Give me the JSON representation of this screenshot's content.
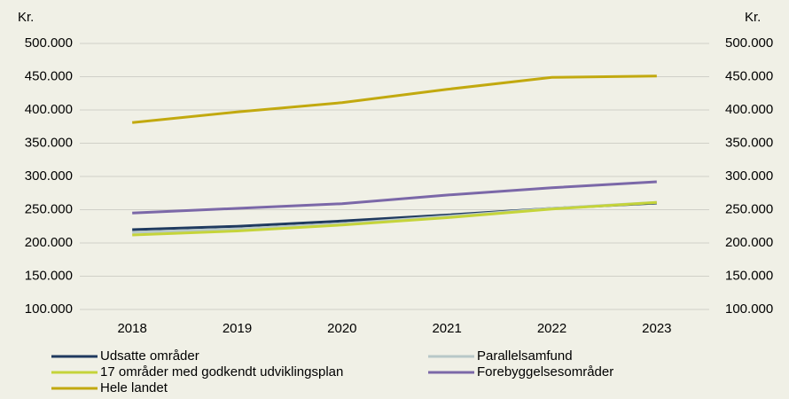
{
  "chart_data": {
    "type": "line",
    "y_label": "Kr.",
    "y2_label": "Kr.",
    "categories": [
      "2018",
      "2019",
      "2020",
      "2021",
      "2022",
      "2023"
    ],
    "series": [
      {
        "name": "Udsatte områder",
        "color": "#1f3a5f",
        "values": [
          220000,
          225000,
          233000,
          242000,
          252000,
          260000
        ]
      },
      {
        "name": "Parallelsamfund",
        "color": "#b8c8c8",
        "values": [
          216000,
          221000,
          229000,
          240000,
          252000,
          261000
        ]
      },
      {
        "name": "17 områder med godkendt udviklingsplan",
        "color": "#c5d43a",
        "values": [
          212000,
          218000,
          227000,
          238000,
          251000,
          261000
        ]
      },
      {
        "name": "Forebyggelsesområder",
        "color": "#7b68a8",
        "values": [
          245000,
          252000,
          259000,
          272000,
          283000,
          292000
        ]
      },
      {
        "name": "Hele landet",
        "color": "#c2a90f",
        "values": [
          381000,
          397000,
          411000,
          431000,
          449000,
          451000
        ]
      }
    ],
    "ylim": [
      100000,
      500000
    ],
    "yticks": [
      {
        "value": 100000,
        "label": "100.000"
      },
      {
        "value": 150000,
        "label": "150.000"
      },
      {
        "value": 200000,
        "label": "200.000"
      },
      {
        "value": 250000,
        "label": "250.000"
      },
      {
        "value": 300000,
        "label": "300.000"
      },
      {
        "value": 350000,
        "label": "350.000"
      },
      {
        "value": 400000,
        "label": "400.000"
      },
      {
        "value": 450000,
        "label": "450.000"
      },
      {
        "value": 500000,
        "label": "500.000"
      }
    ],
    "y2lim": [
      100000,
      500000
    ],
    "y2ticks": [
      {
        "value": 100000,
        "label": "100.000"
      },
      {
        "value": 150000,
        "label": "150.000"
      },
      {
        "value": 200000,
        "label": "200.000"
      },
      {
        "value": 250000,
        "label": "250.000"
      },
      {
        "value": 300000,
        "label": "300.000"
      },
      {
        "value": 350000,
        "label": "350.000"
      },
      {
        "value": 400000,
        "label": "400.000"
      },
      {
        "value": 450000,
        "label": "450.000"
      },
      {
        "value": 500000,
        "label": "500.000"
      }
    ],
    "grid": true
  }
}
